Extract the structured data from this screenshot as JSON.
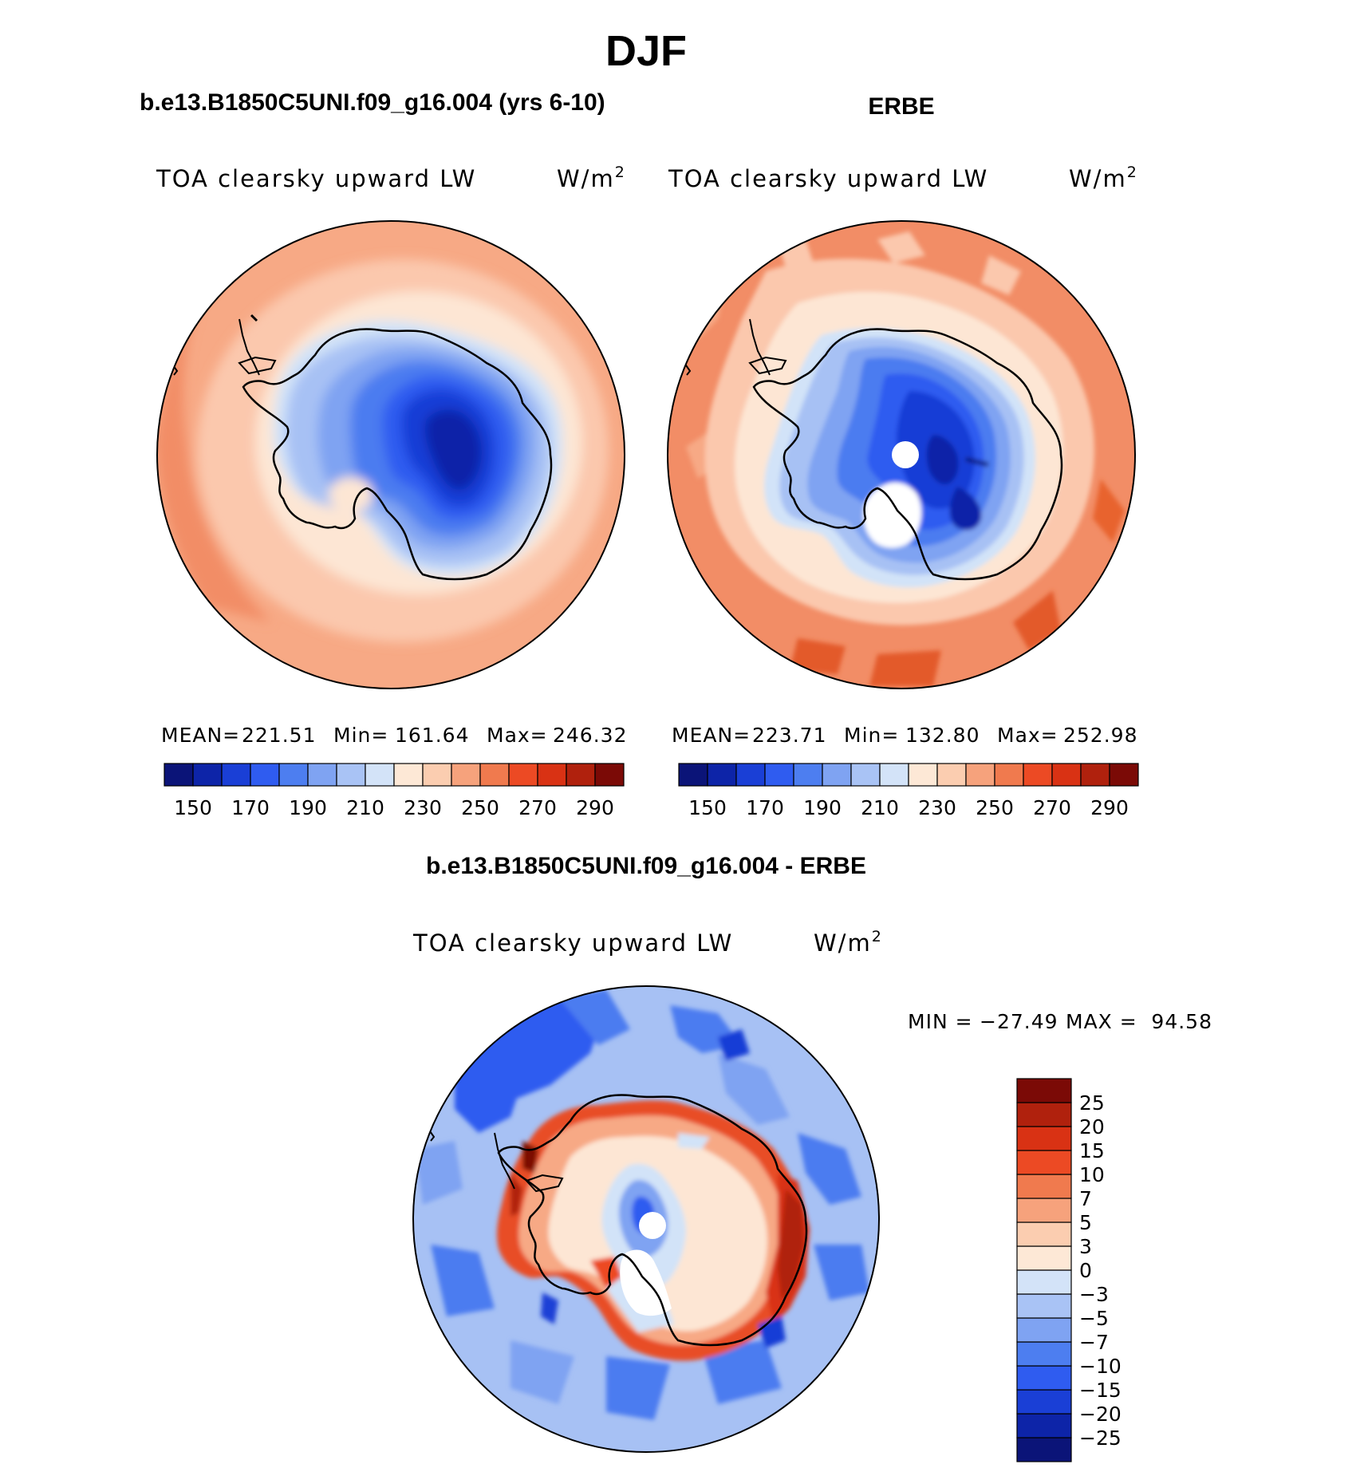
{
  "figure": {
    "title": "DJF",
    "panel_titles": {
      "model": "b.e13.B1850C5UNI.f09_g16.004 (yrs 6-10)",
      "obs": "ERBE",
      "diff": "b.e13.B1850C5UNI.f09_g16.004 - ERBE"
    }
  },
  "chart_data": [
    {
      "type": "polar-contour-map",
      "projection": "south-polar-stereographic",
      "variable": "TOA clearsky upward LW",
      "units": "W/m",
      "units_exponent": "2",
      "stats": {
        "mean_label": "MEAN=",
        "mean": "221.51",
        "min_label": "Min=",
        "min": "161.64",
        "max_label": "Max=",
        "max": "246.32"
      },
      "contour_levels": [
        150,
        160,
        170,
        180,
        190,
        200,
        210,
        220,
        230,
        240,
        250,
        260,
        270,
        280,
        290
      ],
      "colorbar_tick_labels": [
        "150",
        "170",
        "190",
        "210",
        "230",
        "250",
        "270",
        "290"
      ],
      "colors": [
        "#0b1478",
        "#0d24a8",
        "#1a3fd6",
        "#2f5cf0",
        "#4d7ef0",
        "#7fa3f2",
        "#a9c3f5",
        "#d3e3f8",
        "#fde8d6",
        "#fbcdb0",
        "#f6a27c",
        "#f07a4e",
        "#ec4a24",
        "#d93214",
        "#b0210d",
        "#7b0a06"
      ]
    },
    {
      "type": "polar-contour-map",
      "projection": "south-polar-stereographic",
      "variable": "TOA clearsky upward LW",
      "units": "W/m",
      "units_exponent": "2",
      "stats": {
        "mean_label": "MEAN=",
        "mean": "223.71",
        "min_label": "Min=",
        "min": "132.80",
        "max_label": "Max=",
        "max": "252.98"
      },
      "contour_levels": [
        150,
        160,
        170,
        180,
        190,
        200,
        210,
        220,
        230,
        240,
        250,
        260,
        270,
        280,
        290
      ],
      "colorbar_tick_labels": [
        "150",
        "170",
        "190",
        "210",
        "230",
        "250",
        "270",
        "290"
      ],
      "colors": [
        "#0b1478",
        "#0d24a8",
        "#1a3fd6",
        "#2f5cf0",
        "#4d7ef0",
        "#7fa3f2",
        "#a9c3f5",
        "#d3e3f8",
        "#fde8d6",
        "#fbcdb0",
        "#f6a27c",
        "#f07a4e",
        "#ec4a24",
        "#d93214",
        "#b0210d",
        "#7b0a06"
      ]
    },
    {
      "type": "polar-contour-map",
      "projection": "south-polar-stereographic",
      "variable": "TOA clearsky upward LW",
      "units": "W/m",
      "units_exponent": "2",
      "stats": {
        "min_label": "MIN =",
        "min": "−27.49",
        "max_label": "MAX =",
        "max": "94.58"
      },
      "contour_levels": [
        -25,
        -20,
        -15,
        -10,
        -7,
        -5,
        -3,
        0,
        3,
        5,
        7,
        10,
        15,
        20,
        25
      ],
      "colorbar_tick_labels": [
        "25",
        "20",
        "15",
        "10",
        "7",
        "5",
        "3",
        "0",
        "−3",
        "−5",
        "−7",
        "−10",
        "−15",
        "−20",
        "−25"
      ],
      "colors": [
        "#0b1478",
        "#0d24a8",
        "#1a3fd6",
        "#2f5cf0",
        "#4d7ef0",
        "#7fa3f2",
        "#a9c3f5",
        "#d3e3f8",
        "#fde8d6",
        "#fbcdb0",
        "#f6a27c",
        "#f07a4e",
        "#ec4a24",
        "#d93214",
        "#b0210d",
        "#7b0a06"
      ]
    }
  ]
}
